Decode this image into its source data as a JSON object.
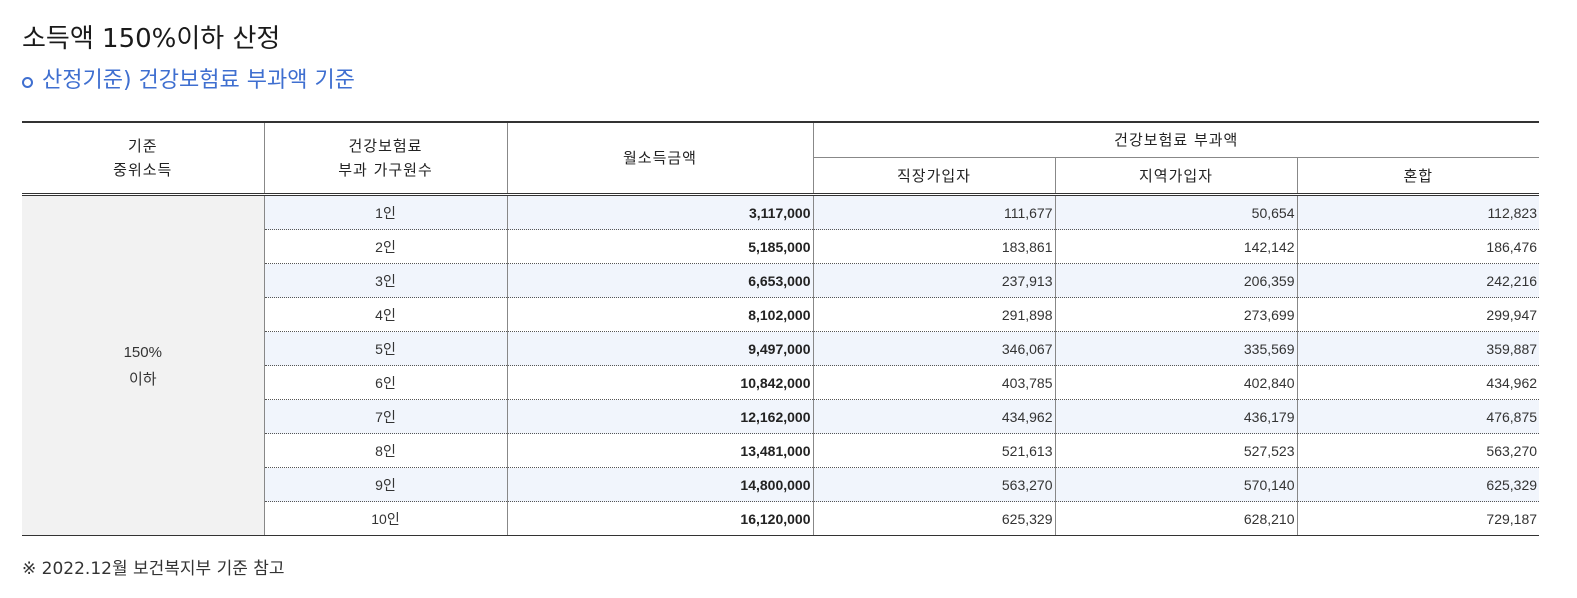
{
  "title": "소득액 150%이하 산정",
  "subtitle": "산정기준) 건강보험료 부과액 기준",
  "accent_color": "#3f6fd0",
  "table": {
    "headers": {
      "median_income_line1": "기준",
      "median_income_line2": "중위소득",
      "household_line1": "건강보험료",
      "household_line2": "부과 가구원수",
      "monthly_income": "월소득금액",
      "premium_group": "건강보험료 부과액",
      "employee": "직장가입자",
      "regional": "지역가입자",
      "mixed": "혼합"
    },
    "group_line1": "150%",
    "group_line2": "이하",
    "rows": [
      {
        "persons": "1인",
        "income": "3,117,000",
        "employee": "111,677",
        "regional": "50,654",
        "mixed": "112,823"
      },
      {
        "persons": "2인",
        "income": "5,185,000",
        "employee": "183,861",
        "regional": "142,142",
        "mixed": "186,476"
      },
      {
        "persons": "3인",
        "income": "6,653,000",
        "employee": "237,913",
        "regional": "206,359",
        "mixed": "242,216"
      },
      {
        "persons": "4인",
        "income": "8,102,000",
        "employee": "291,898",
        "regional": "273,699",
        "mixed": "299,947"
      },
      {
        "persons": "5인",
        "income": "9,497,000",
        "employee": "346,067",
        "regional": "335,569",
        "mixed": "359,887"
      },
      {
        "persons": "6인",
        "income": "10,842,000",
        "employee": "403,785",
        "regional": "402,840",
        "mixed": "434,962"
      },
      {
        "persons": "7인",
        "income": "12,162,000",
        "employee": "434,962",
        "regional": "436,179",
        "mixed": "476,875"
      },
      {
        "persons": "8인",
        "income": "13,481,000",
        "employee": "521,613",
        "regional": "527,523",
        "mixed": "563,270"
      },
      {
        "persons": "9인",
        "income": "14,800,000",
        "employee": "563,270",
        "regional": "570,140",
        "mixed": "625,329"
      },
      {
        "persons": "10인",
        "income": "16,120,000",
        "employee": "625,329",
        "regional": "628,210",
        "mixed": "729,187"
      }
    ]
  },
  "note": "※ 2022.12월 보건복지부 기준 참고"
}
